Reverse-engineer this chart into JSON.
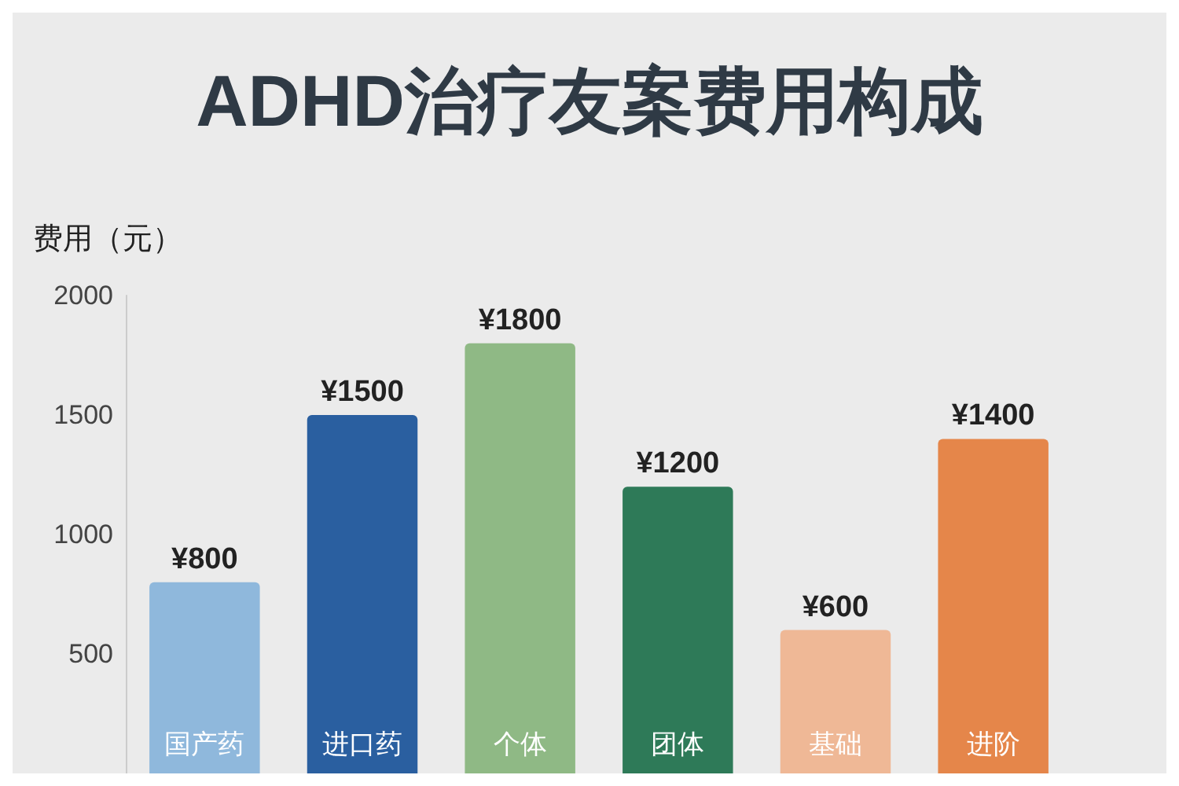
{
  "chart_data": {
    "type": "bar",
    "title": "ADHD治疗友案费用构成",
    "ylabel": "费用（元）",
    "categories": [
      "国产药",
      "进口药",
      "个体",
      "团体",
      "基础",
      "进阶"
    ],
    "values": [
      800,
      1500,
      1800,
      1200,
      600,
      1400
    ],
    "colors": [
      "#8fb8dc",
      "#2a5fa0",
      "#8fb985",
      "#2e7a58",
      "#efb896",
      "#e5864a"
    ],
    "value_labels": [
      "¥800",
      "¥1500",
      "¥1800",
      "¥1200",
      "¥600",
      "¥1400"
    ],
    "ylim": [
      0,
      2000
    ],
    "yticks": [
      500,
      1000,
      1500,
      2000
    ],
    "grid": false
  }
}
